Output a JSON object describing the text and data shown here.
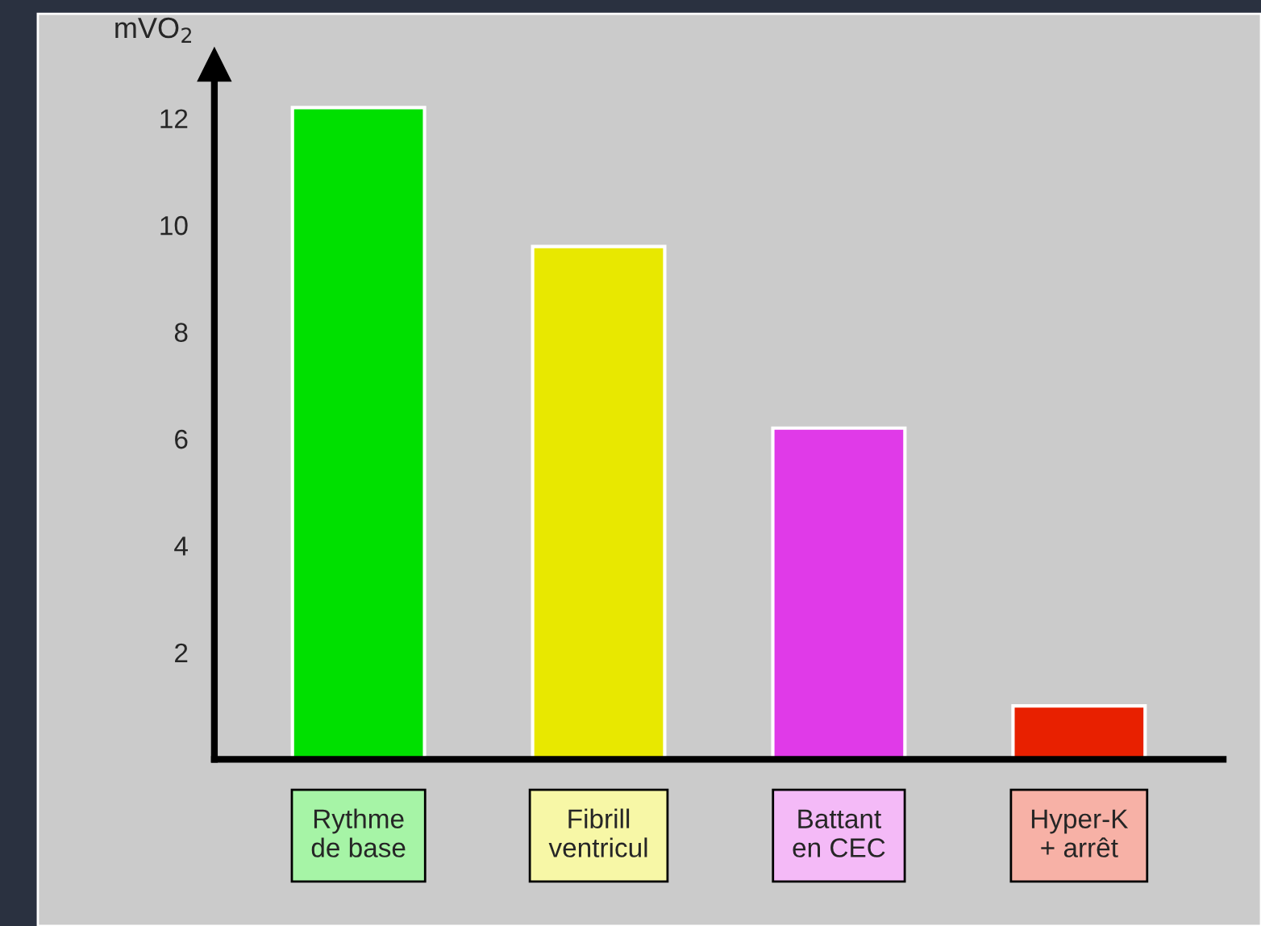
{
  "chart_data": {
    "type": "bar",
    "ylabel": "mVO$_{2}$",
    "categories": [
      "Rythme\nde base",
      "Fibrill\nventricul",
      "Battant\nen CEC",
      "Hyper-K\n+ arrêt"
    ],
    "values": [
      12.2,
      9.6,
      6.2,
      1.0
    ],
    "colors": [
      "#00e000",
      "#e8e800",
      "#e03ae8",
      "#e82000"
    ],
    "ylim": [
      0,
      13
    ],
    "yticks": [
      2,
      4,
      6,
      8,
      10,
      12
    ]
  }
}
